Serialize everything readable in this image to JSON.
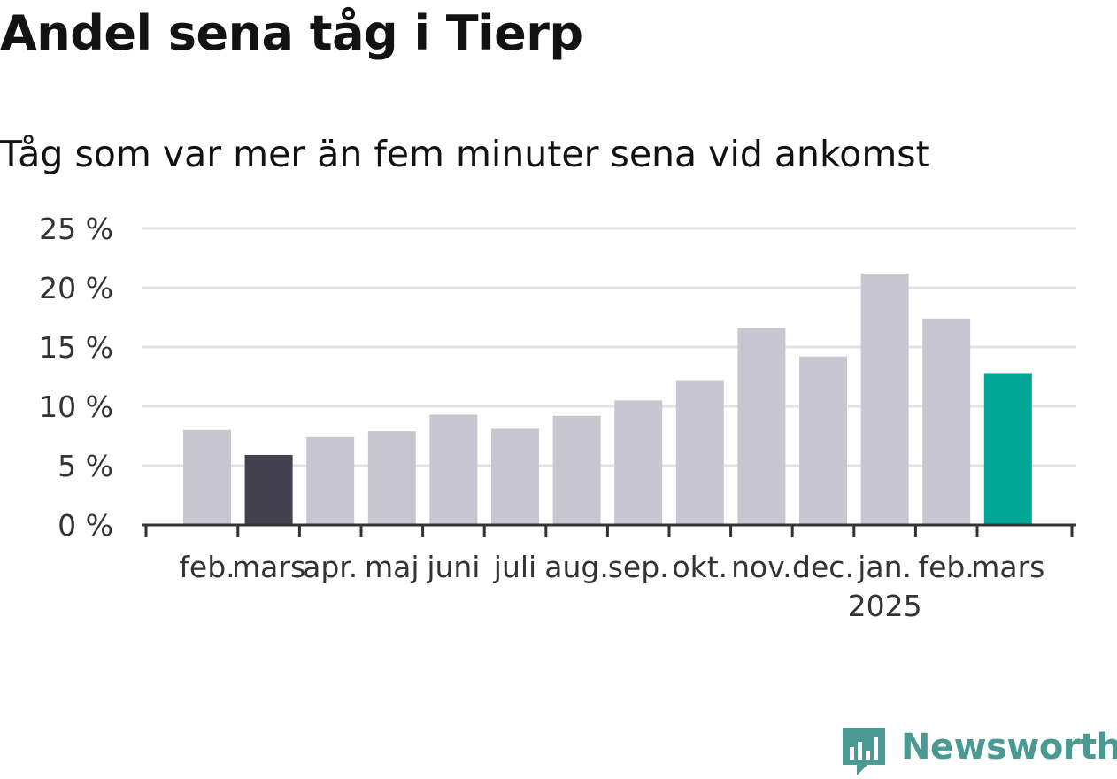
{
  "title": "Andel sena tåg i Tierp",
  "subtitle": "Tåg som var mer än fem minuter sena vid ankomst",
  "brand": {
    "name": "Newsworthy",
    "color": "#4a9a93",
    "icon": "newsworthy-logo-icon"
  },
  "colors": {
    "default_bar": "#c8c6d0",
    "highlight_previous_year": "#43414e",
    "highlight_latest": "#00a596",
    "grid": "#e2e2e2",
    "axis": "#333333",
    "text": "#333333"
  },
  "chart_data": {
    "type": "bar",
    "title": "Andel sena tåg i Tierp",
    "subtitle": "Tåg som var mer än fem minuter sena vid ankomst",
    "xlabel": "",
    "ylabel": "",
    "ylim": [
      0,
      25
    ],
    "y_ticks": [
      0,
      5,
      10,
      15,
      20,
      25
    ],
    "y_tick_labels": [
      "0 %",
      "5 %",
      "10 %",
      "15 %",
      "20 %",
      "25 %"
    ],
    "grid": true,
    "categories": [
      "feb.",
      "mars",
      "apr.",
      "maj",
      "juni",
      "juli",
      "aug.",
      "sep.",
      "okt.",
      "nov.",
      "dec.",
      "jan.",
      "feb.",
      "mars"
    ],
    "year_labels": [
      {
        "category_index": 11,
        "label": "2025"
      }
    ],
    "values": [
      8.0,
      5.9,
      7.4,
      7.9,
      9.3,
      8.1,
      9.2,
      10.5,
      12.2,
      16.6,
      14.2,
      21.2,
      17.4,
      12.8
    ],
    "bar_color_keys": [
      "default_bar",
      "highlight_previous_year",
      "default_bar",
      "default_bar",
      "default_bar",
      "default_bar",
      "default_bar",
      "default_bar",
      "default_bar",
      "default_bar",
      "default_bar",
      "default_bar",
      "default_bar",
      "highlight_latest"
    ]
  }
}
